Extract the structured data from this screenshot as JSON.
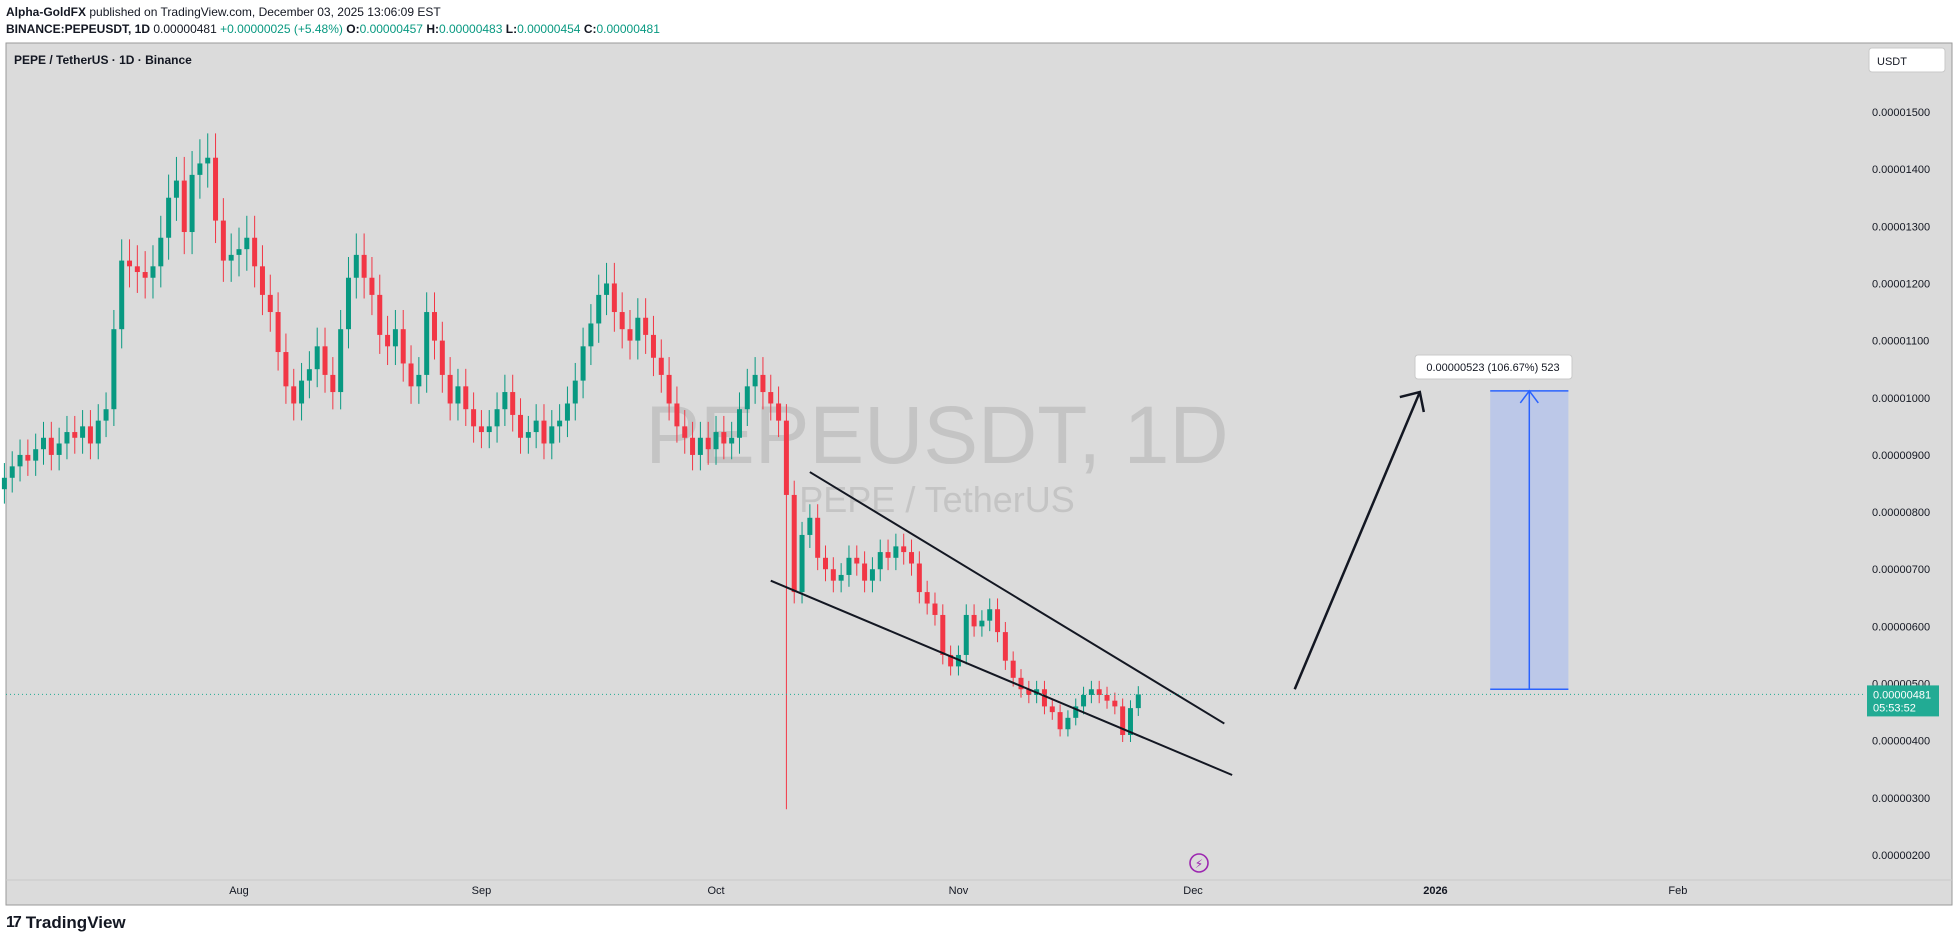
{
  "header": {
    "author": "Alpha-GoldFX",
    "published": "published on TradingView.com, December 03, 2025 13:06:09 EST",
    "symbol_line": "BINANCE:PEPEUSDT, 1D",
    "last": "0.00000481",
    "change": "+0.00000025 (+5.48%)",
    "o_label": "O:",
    "o": "0.00000457",
    "h_label": "H:",
    "h": "0.00000483",
    "l_label": "L:",
    "l": "0.00000454",
    "c_label": "C:",
    "c": "0.00000481"
  },
  "chart_title": "PEPE / TetherUS · 1D · Binance",
  "currency": "USDT",
  "watermark": {
    "main": "PEPEUSDT, 1D",
    "sub": "PEPE / TetherUS"
  },
  "price_tag": {
    "price": "0.00000481",
    "countdown": "05:53:52"
  },
  "measure_label": "0.00000523 (106.67%) 523",
  "footer": {
    "brand": "TradingView"
  },
  "colors": {
    "up": "#089981",
    "down": "#f23645",
    "bg": "#dbdbdb",
    "measure": "#2962ff",
    "tag": "#22ab94"
  },
  "chart_data": {
    "type": "candlestick",
    "y_ticks": [
      {
        "v": 1.5e-05,
        "label": "0.00001500"
      },
      {
        "v": 1.4e-05,
        "label": "0.00001400"
      },
      {
        "v": 1.3e-05,
        "label": "0.00001300"
      },
      {
        "v": 1.2e-05,
        "label": "0.00001200"
      },
      {
        "v": 1.1e-05,
        "label": "0.00001100"
      },
      {
        "v": 1e-05,
        "label": "0.00001000"
      },
      {
        "v": 9e-06,
        "label": "0.00000900"
      },
      {
        "v": 8e-06,
        "label": "0.00000800"
      },
      {
        "v": 7e-06,
        "label": "0.00000700"
      },
      {
        "v": 6e-06,
        "label": "0.00000600"
      },
      {
        "v": 5e-06,
        "label": "0.00000500"
      },
      {
        "v": 4e-06,
        "label": "0.00000400"
      },
      {
        "v": 3e-06,
        "label": "0.00000300"
      },
      {
        "v": 2e-06,
        "label": "0.00000200"
      }
    ],
    "x_ticks": [
      {
        "label": "Aug",
        "date": "2025-08-01"
      },
      {
        "label": "Sep",
        "date": "2025-09-01"
      },
      {
        "label": "Oct",
        "date": "2025-10-01"
      },
      {
        "label": "Nov",
        "date": "2025-11-01"
      },
      {
        "label": "Dec",
        "date": "2025-12-01"
      },
      {
        "label": "2026",
        "date": "2026-01-01"
      },
      {
        "label": "Feb",
        "date": "2026-02-01"
      }
    ],
    "first_date": "2025-07-02",
    "last_date": "2025-12-03",
    "ohlc_approx_close": [
      8.6,
      8.8,
      9.0,
      8.9,
      9.1,
      9.3,
      9.0,
      9.2,
      9.4,
      9.3,
      9.5,
      9.2,
      9.6,
      9.8,
      11.2,
      12.4,
      12.3,
      12.2,
      12.1,
      12.3,
      12.8,
      13.5,
      13.8,
      12.9,
      13.9,
      14.1,
      14.2,
      13.1,
      12.4,
      12.5,
      12.6,
      12.8,
      12.3,
      11.8,
      11.5,
      10.8,
      10.2,
      9.9,
      10.3,
      10.5,
      10.9,
      10.4,
      10.1,
      11.2,
      12.1,
      12.5,
      12.1,
      11.8,
      11.1,
      10.9,
      11.2,
      10.6,
      10.2,
      10.4,
      11.5,
      11.0,
      10.4,
      9.9,
      10.2,
      9.8,
      9.5,
      9.4,
      9.5,
      9.8,
      10.1,
      9.7,
      9.3,
      9.4,
      9.6,
      9.2,
      9.5,
      9.6,
      9.9,
      10.3,
      10.9,
      11.3,
      11.8,
      12.0,
      11.5,
      11.2,
      11.0,
      11.4,
      11.1,
      10.7,
      10.4,
      9.9,
      9.5,
      9.3,
      9.0,
      9.3,
      9.1,
      9.4,
      9.2,
      9.3,
      9.8,
      10.2,
      10.4,
      10.1,
      9.9,
      9.6,
      8.3,
      6.6,
      7.6,
      7.9,
      7.2,
      7.0,
      6.8,
      6.9,
      7.2,
      7.1,
      6.8,
      7.0,
      7.3,
      7.2,
      7.4,
      7.3,
      7.1,
      6.6,
      6.4,
      6.2,
      5.5,
      5.3,
      5.5,
      6.2,
      6.0,
      6.1,
      6.3,
      5.9,
      5.4,
      5.1,
      4.9,
      4.8,
      4.9,
      4.6,
      4.5,
      4.2,
      4.4,
      4.6,
      4.8,
      4.9,
      4.8,
      4.7,
      4.6,
      4.1,
      4.57,
      4.81
    ],
    "upper_trendline": [
      [
        "2025-10-13",
        8.7e-06
      ],
      [
        "2025-12-05",
        4.3e-06
      ]
    ],
    "lower_trendline": [
      [
        "2025-10-08",
        6.8e-06
      ],
      [
        "2025-12-06",
        3.4e-06
      ]
    ],
    "projection_arrow": [
      [
        "2025-12-14",
        4.9e-06
      ],
      [
        "2025-12-30",
        1.01e-05
      ]
    ],
    "measure_range": {
      "from": 4.9e-06,
      "to": 1.012e-05,
      "date_start": "2026-01-08",
      "date_end": "2026-01-18"
    },
    "last_price": 4.81e-06
  }
}
